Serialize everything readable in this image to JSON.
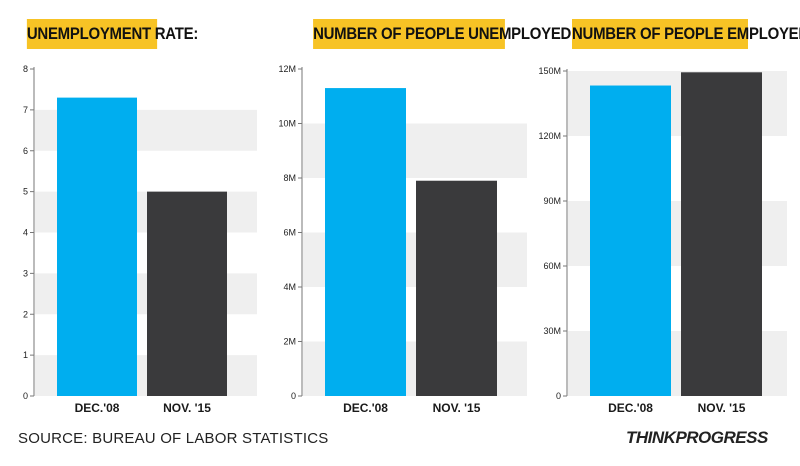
{
  "chart_data": [
    {
      "type": "bar",
      "title": "UNEMPLOYMENT RATE:",
      "categories": [
        "DEC.'08",
        "NOV. '15"
      ],
      "values": [
        7.3,
        5.0
      ],
      "colors": [
        "#00aeef",
        "#3a3a3c"
      ],
      "ylim": [
        0,
        8
      ],
      "yticks": [
        0,
        1,
        2,
        3,
        4,
        5,
        6,
        7,
        8
      ],
      "ytick_labels": [
        "0",
        "1",
        "2",
        "3",
        "4",
        "5",
        "6",
        "7",
        "8"
      ],
      "grid": "alternating bands"
    },
    {
      "type": "bar",
      "title": "NUMBER OF PEOPLE UNEMPLOYED:",
      "categories": [
        "DEC.'08",
        "NOV. '15"
      ],
      "values": [
        11300000,
        7900000
      ],
      "colors": [
        "#00aeef",
        "#3a3a3c"
      ],
      "ylim": [
        0,
        12000000
      ],
      "yticks": [
        0,
        2000000,
        4000000,
        6000000,
        8000000,
        10000000,
        12000000
      ],
      "ytick_labels": [
        "0",
        "2M",
        "4M",
        "6M",
        "8M",
        "10M",
        "12M"
      ],
      "grid": "alternating bands"
    },
    {
      "type": "bar",
      "title": "NUMBER OF PEOPLE EMPLOYED:",
      "categories": [
        "DEC.'08",
        "NOV. '15"
      ],
      "values": [
        143300000,
        149400000
      ],
      "colors": [
        "#00aeef",
        "#3a3a3c"
      ],
      "ylim": [
        0,
        150000000
      ],
      "yticks": [
        0,
        30000000,
        60000000,
        90000000,
        120000000,
        150000000
      ],
      "ytick_labels": [
        "0",
        "30M",
        "60M",
        "90M",
        "120M",
        "150M"
      ],
      "grid": "alternating bands"
    }
  ],
  "footer": {
    "source": "SOURCE: BUREAU OF LABOR STATISTICS",
    "logo": "THINKPROGRESS"
  }
}
